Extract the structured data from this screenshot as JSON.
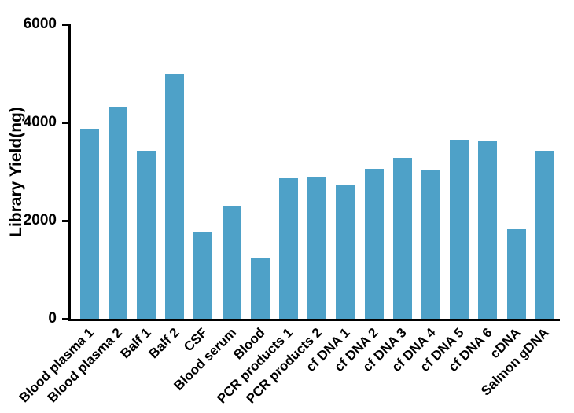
{
  "chart_data": {
    "type": "bar",
    "title": "",
    "xlabel": "",
    "ylabel": "Library Yield(ng)",
    "ylim": [
      0,
      6000
    ],
    "yticks": [
      0,
      2000,
      4000,
      6000
    ],
    "grid": false,
    "legend": null,
    "bar_color": "#4EA1C8",
    "axis_color": "#000000",
    "categories": [
      "Blood plasma 1",
      "Blood plasma 2",
      "Balf 1",
      "Balf 2",
      "CSF",
      "Blood serum",
      "Blood",
      "PCR products 1",
      "PCR products 2",
      "cf DNA 1",
      "cf DNA 2",
      "cf DNA 3",
      "cf DNA 4",
      "cf DNA 5",
      "cf DNA 6",
      "cDNA",
      "Salmon gDNA"
    ],
    "values": [
      3880,
      4320,
      3430,
      5000,
      1760,
      2300,
      1250,
      2860,
      2880,
      2720,
      3050,
      3280,
      3040,
      3650,
      3640,
      1820,
      3420
    ]
  }
}
